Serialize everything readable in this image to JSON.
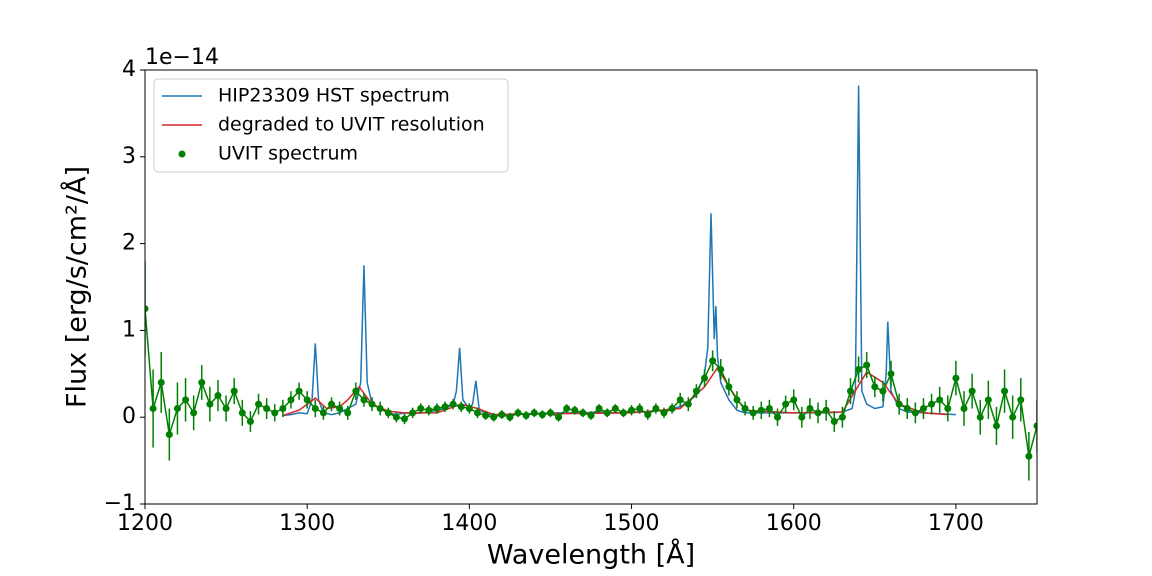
{
  "chart_data": {
    "type": "line",
    "xlabel": "Wavelength [Å]",
    "ylabel": "Flux [erg/s/cm²/Å]",
    "y_offset_text": "1e−14",
    "xlim": [
      1200,
      1750
    ],
    "xticks": [
      1200,
      1300,
      1400,
      1500,
      1600,
      1700
    ],
    "ylim": [
      -1,
      4
    ],
    "yticks": [
      {
        "value": -1,
        "label": "−1"
      },
      0,
      1,
      2,
      3,
      4
    ],
    "legend_loc": "upper left",
    "grid": false,
    "series": [
      {
        "name": "HIP23309 HST spectrum",
        "color": "#1f77b4",
        "x": [
          1285,
          1290,
          1295,
          1300,
          1303,
          1305,
          1307,
          1310,
          1315,
          1320,
          1325,
          1330,
          1333,
          1335,
          1337,
          1340,
          1345,
          1350,
          1355,
          1360,
          1365,
          1370,
          1375,
          1380,
          1385,
          1390,
          1392,
          1394,
          1396,
          1400,
          1402,
          1404,
          1406,
          1410,
          1420,
          1430,
          1440,
          1450,
          1460,
          1470,
          1480,
          1490,
          1500,
          1510,
          1520,
          1530,
          1540,
          1545,
          1547,
          1549,
          1551,
          1552,
          1553,
          1555,
          1560,
          1565,
          1570,
          1580,
          1590,
          1600,
          1610,
          1620,
          1630,
          1636,
          1638,
          1640,
          1642,
          1645,
          1650,
          1655,
          1657,
          1658,
          1660,
          1665,
          1670,
          1680,
          1690,
          1700
        ],
        "values": [
          0.02,
          0.03,
          0.05,
          0.04,
          0.2,
          0.85,
          0.2,
          0.05,
          0.03,
          0.05,
          0.1,
          0.15,
          0.4,
          1.75,
          0.4,
          0.15,
          0.1,
          0.05,
          0.03,
          0.05,
          0.04,
          0.05,
          0.06,
          0.08,
          0.1,
          0.15,
          0.3,
          0.8,
          0.2,
          0.1,
          0.15,
          0.42,
          0.1,
          0.03,
          0.03,
          0.04,
          0.04,
          0.05,
          0.05,
          0.05,
          0.06,
          0.05,
          0.06,
          0.06,
          0.08,
          0.12,
          0.25,
          0.5,
          0.8,
          2.35,
          0.9,
          1.28,
          0.7,
          0.4,
          0.2,
          0.08,
          0.05,
          0.05,
          0.05,
          0.05,
          0.05,
          0.05,
          0.06,
          0.1,
          0.3,
          3.82,
          0.3,
          0.15,
          0.1,
          0.12,
          0.5,
          1.1,
          0.3,
          0.1,
          0.06,
          0.05,
          0.04,
          0.03
        ]
      },
      {
        "name": "degraded to UVIT resolution",
        "color": "#d62728",
        "x": [
          1285,
          1295,
          1305,
          1312,
          1320,
          1325,
          1332,
          1340,
          1350,
          1360,
          1380,
          1395,
          1405,
          1415,
          1450,
          1500,
          1530,
          1545,
          1553,
          1560,
          1570,
          1600,
          1630,
          1645,
          1655,
          1665,
          1680,
          1695
        ],
        "values": [
          0.02,
          0.08,
          0.22,
          0.1,
          0.12,
          0.2,
          0.35,
          0.15,
          0.07,
          0.05,
          0.05,
          0.15,
          0.1,
          0.03,
          0.04,
          0.05,
          0.1,
          0.35,
          0.57,
          0.35,
          0.08,
          0.05,
          0.06,
          0.52,
          0.4,
          0.15,
          0.05,
          0.03
        ]
      },
      {
        "name": "UVIT spectrum",
        "color": "#008000",
        "marker": "o",
        "x": [
          1200,
          1205,
          1210,
          1215,
          1220,
          1225,
          1230,
          1235,
          1240,
          1245,
          1250,
          1255,
          1260,
          1265,
          1270,
          1275,
          1280,
          1285,
          1290,
          1295,
          1300,
          1305,
          1310,
          1315,
          1320,
          1325,
          1330,
          1335,
          1340,
          1345,
          1350,
          1355,
          1360,
          1365,
          1370,
          1375,
          1380,
          1385,
          1390,
          1395,
          1400,
          1405,
          1410,
          1415,
          1420,
          1425,
          1430,
          1435,
          1440,
          1445,
          1450,
          1455,
          1460,
          1465,
          1470,
          1475,
          1480,
          1485,
          1490,
          1495,
          1500,
          1505,
          1510,
          1515,
          1520,
          1525,
          1530,
          1535,
          1540,
          1545,
          1550,
          1555,
          1560,
          1565,
          1570,
          1575,
          1580,
          1585,
          1590,
          1595,
          1600,
          1605,
          1610,
          1615,
          1620,
          1625,
          1630,
          1635,
          1640,
          1645,
          1650,
          1655,
          1660,
          1665,
          1670,
          1675,
          1680,
          1685,
          1690,
          1695,
          1700,
          1705,
          1710,
          1715,
          1720,
          1725,
          1730,
          1735,
          1740,
          1745,
          1750
        ],
        "values": [
          1.25,
          0.1,
          0.4,
          -0.2,
          0.1,
          0.2,
          0.05,
          0.4,
          0.15,
          0.25,
          0.1,
          0.3,
          0.05,
          -0.05,
          0.15,
          0.1,
          0.05,
          0.1,
          0.2,
          0.3,
          0.2,
          0.1,
          0.05,
          0.15,
          0.1,
          0.05,
          0.3,
          0.2,
          0.15,
          0.1,
          0.05,
          0.0,
          -0.02,
          0.05,
          0.1,
          0.08,
          0.1,
          0.12,
          0.15,
          0.12,
          0.1,
          0.05,
          0.02,
          0.0,
          0.03,
          0.0,
          0.05,
          0.02,
          0.05,
          0.03,
          0.05,
          0.0,
          0.1,
          0.08,
          0.05,
          0.02,
          0.1,
          0.05,
          0.1,
          0.05,
          0.08,
          0.1,
          0.03,
          0.1,
          0.05,
          0.1,
          0.2,
          0.15,
          0.3,
          0.45,
          0.65,
          0.55,
          0.35,
          0.2,
          0.1,
          0.05,
          0.08,
          0.1,
          0.0,
          0.15,
          0.2,
          0.0,
          0.1,
          0.05,
          0.08,
          -0.05,
          0.0,
          0.3,
          0.55,
          0.6,
          0.35,
          0.3,
          0.5,
          0.15,
          0.1,
          0.05,
          0.1,
          0.15,
          0.2,
          0.1,
          0.45,
          0.1,
          0.3,
          0.0,
          0.2,
          -0.1,
          0.3,
          0.0,
          0.2,
          -0.45,
          -0.1
        ],
        "errors": [
          0.55,
          0.45,
          0.35,
          0.3,
          0.3,
          0.25,
          0.2,
          0.2,
          0.2,
          0.18,
          0.15,
          0.15,
          0.15,
          0.12,
          0.12,
          0.12,
          0.1,
          0.1,
          0.1,
          0.1,
          0.1,
          0.1,
          0.08,
          0.08,
          0.08,
          0.08,
          0.1,
          0.08,
          0.08,
          0.08,
          0.06,
          0.06,
          0.06,
          0.06,
          0.06,
          0.06,
          0.06,
          0.06,
          0.06,
          0.06,
          0.06,
          0.06,
          0.05,
          0.05,
          0.05,
          0.05,
          0.05,
          0.05,
          0.05,
          0.05,
          0.05,
          0.05,
          0.05,
          0.05,
          0.05,
          0.05,
          0.05,
          0.05,
          0.05,
          0.05,
          0.06,
          0.06,
          0.06,
          0.06,
          0.06,
          0.06,
          0.08,
          0.08,
          0.08,
          0.1,
          0.12,
          0.12,
          0.1,
          0.1,
          0.08,
          0.08,
          0.1,
          0.1,
          0.1,
          0.1,
          0.12,
          0.12,
          0.12,
          0.12,
          0.12,
          0.12,
          0.12,
          0.15,
          0.15,
          0.15,
          0.12,
          0.12,
          0.15,
          0.12,
          0.12,
          0.12,
          0.12,
          0.12,
          0.15,
          0.15,
          0.2,
          0.2,
          0.2,
          0.2,
          0.22,
          0.22,
          0.25,
          0.25,
          0.25,
          0.28,
          0.3
        ]
      }
    ]
  }
}
